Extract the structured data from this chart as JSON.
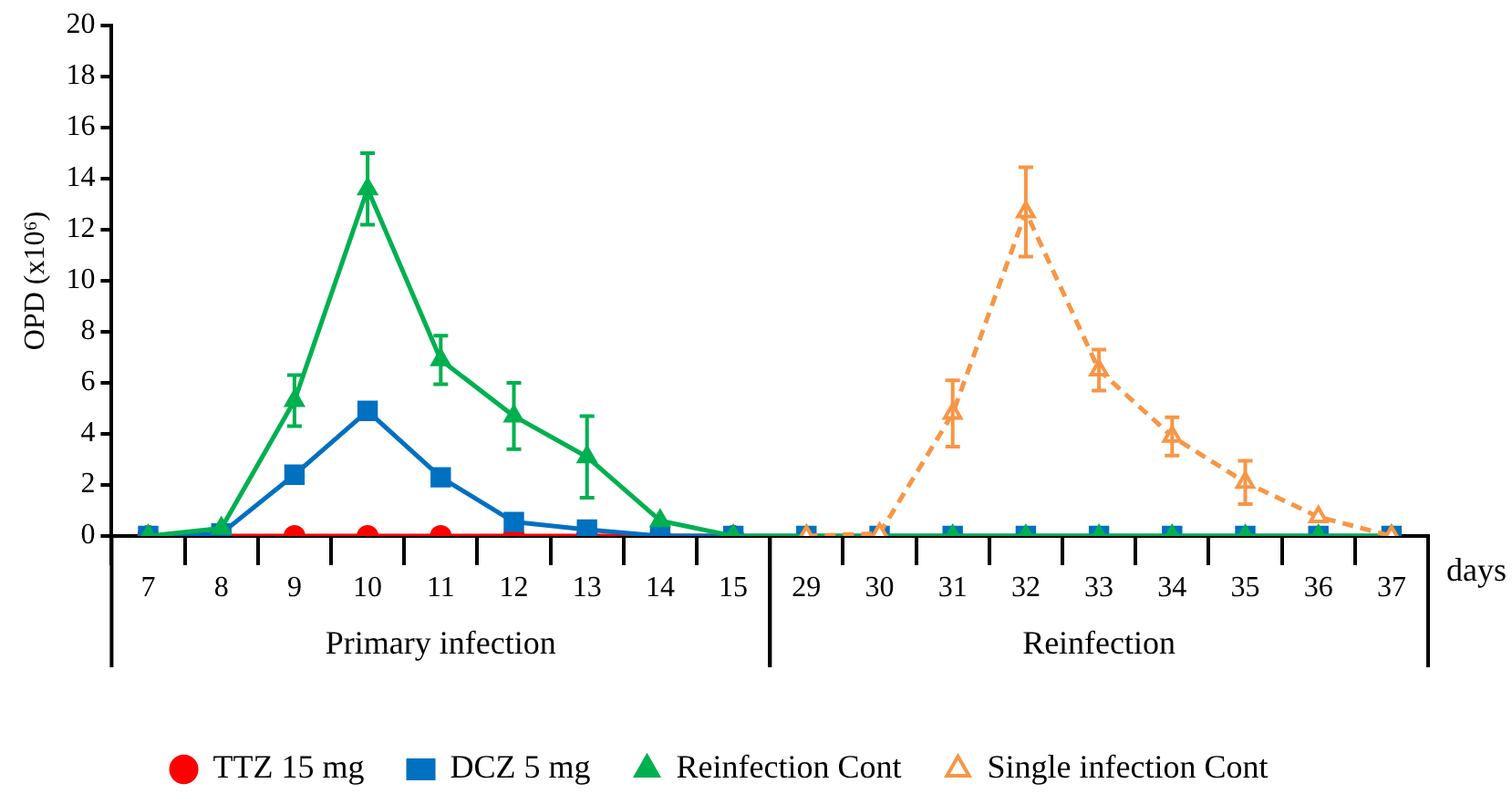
{
  "chart_data": {
    "type": "line",
    "ylabel": "OPD (x10⁶)",
    "xlabel": "days",
    "categories": [
      "7",
      "8",
      "9",
      "10",
      "11",
      "12",
      "13",
      "14",
      "15",
      "29",
      "30",
      "31",
      "32",
      "33",
      "34",
      "35",
      "36",
      "37"
    ],
    "series": [
      {
        "name": "TTZ 15 mg",
        "color": "#ff0000",
        "marker": "circle",
        "values": [
          0,
          0,
          0,
          0,
          0,
          0,
          0,
          0,
          0,
          null,
          null,
          null,
          null,
          null,
          null,
          null,
          null,
          null
        ]
      },
      {
        "name": "DCZ 5 mg",
        "color": "#0070c0",
        "marker": "square",
        "values": [
          0,
          0.1,
          2.4,
          4.9,
          2.3,
          0.55,
          0.25,
          0,
          0,
          0,
          0,
          0,
          0,
          0,
          0,
          0,
          0,
          0
        ]
      },
      {
        "name": "Reinfection Cont",
        "color": "#00b050",
        "marker": "triangle",
        "values": [
          0,
          0.3,
          5.3,
          13.6,
          6.9,
          4.7,
          3.1,
          0.6,
          0,
          0,
          0,
          0,
          0,
          0,
          0,
          0,
          0,
          0
        ],
        "errors": [
          null,
          null,
          1.0,
          1.4,
          0.95,
          1.3,
          1.6,
          null,
          null,
          null,
          null,
          null,
          null,
          null,
          null,
          null,
          null,
          null
        ]
      },
      {
        "name": "Single infection Cont",
        "color": "#f79646",
        "marker": "triangle",
        "line_style": "dashed",
        "values": [
          null,
          null,
          null,
          null,
          null,
          null,
          null,
          null,
          null,
          0,
          0.1,
          4.8,
          12.7,
          6.5,
          3.9,
          2.1,
          0.75,
          0
        ],
        "errors": [
          null,
          null,
          null,
          null,
          null,
          null,
          null,
          null,
          null,
          null,
          null,
          1.3,
          1.75,
          0.8,
          0.75,
          0.85,
          null,
          null
        ]
      }
    ],
    "ylim": [
      0,
      20
    ],
    "yticks": [
      0,
      2,
      4,
      6,
      8,
      10,
      12,
      14,
      16,
      18,
      20
    ],
    "annotations": [
      "Primary infection",
      "Reinfection"
    ],
    "legend": "bottom",
    "grid": false
  }
}
